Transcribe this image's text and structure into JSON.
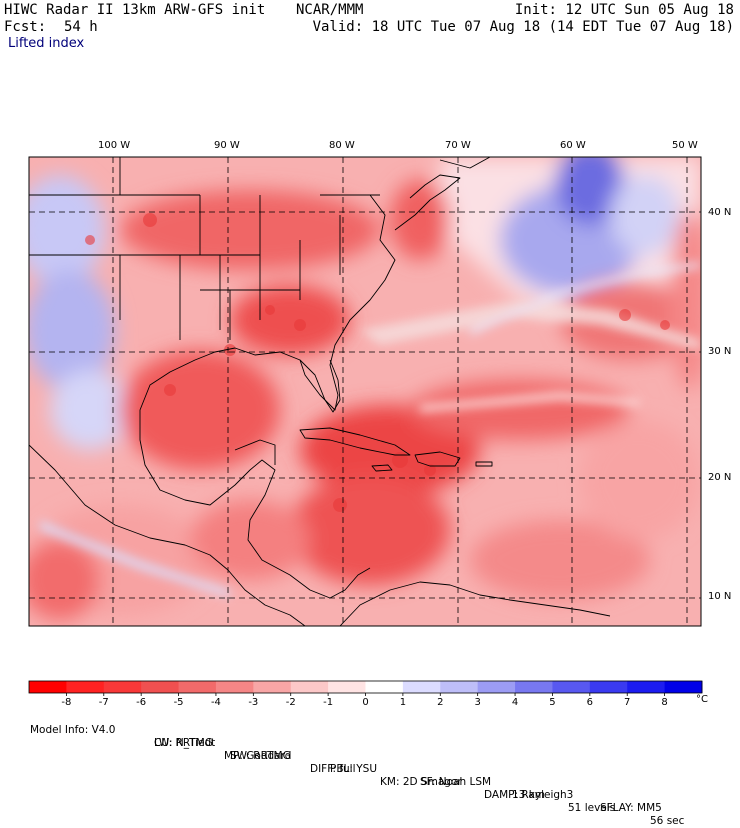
{
  "header": {
    "title": "HIWC Radar II 13km ARW-GFS init",
    "org": "NCAR/MMM",
    "fcst_label": "Fcst:",
    "fcst_value": "54 h",
    "init": "Init: 12 UTC Sun 05 Aug 18",
    "valid": "Valid: 18 UTC Tue 07 Aug 18 (14 EDT Tue 07 Aug 18)",
    "field": "Lifted index"
  },
  "map": {
    "lon_labels": [
      "100 W",
      "90 W",
      "80 W",
      "70 W",
      "60 W",
      "50 W"
    ],
    "lat_labels": [
      "40 N",
      "30 N",
      "20 N",
      "10 N"
    ]
  },
  "colorbar": {
    "tick_labels": [
      "-8",
      "-7",
      "-6",
      "-5",
      "-4",
      "-3",
      "-2",
      "-1",
      "0",
      "1",
      "2",
      "3",
      "4",
      "5",
      "6",
      "7",
      "8"
    ],
    "unit": "°C",
    "colors": [
      "#ff0000",
      "#ff2222",
      "#f83838",
      "#f05050",
      "#f26a6a",
      "#f58686",
      "#f8a6a6",
      "#fcc8c8",
      "#ffe4e4",
      "#ffffff",
      "#dcdcff",
      "#bebef8",
      "#9c9cf4",
      "#7878f0",
      "#5858f0",
      "#3a3af0",
      "#1c1cf0",
      "#0000e8"
    ]
  },
  "model_info": {
    "line1": [
      "Model Info: V4.0",
      "CU: N_Tiedt",
      "MP: Goddard",
      "PBL: YSU",
      "SF: Noah LSM",
      "13 km",
      "51 levels",
      "56 sec"
    ],
    "line2": [
      "LW: RRTMG",
      "SW: RRTMG",
      "DIFF: full",
      "KM: 2D Smagor",
      "DAMP: Rayleigh3",
      "SFLAY: MM5"
    ]
  }
}
